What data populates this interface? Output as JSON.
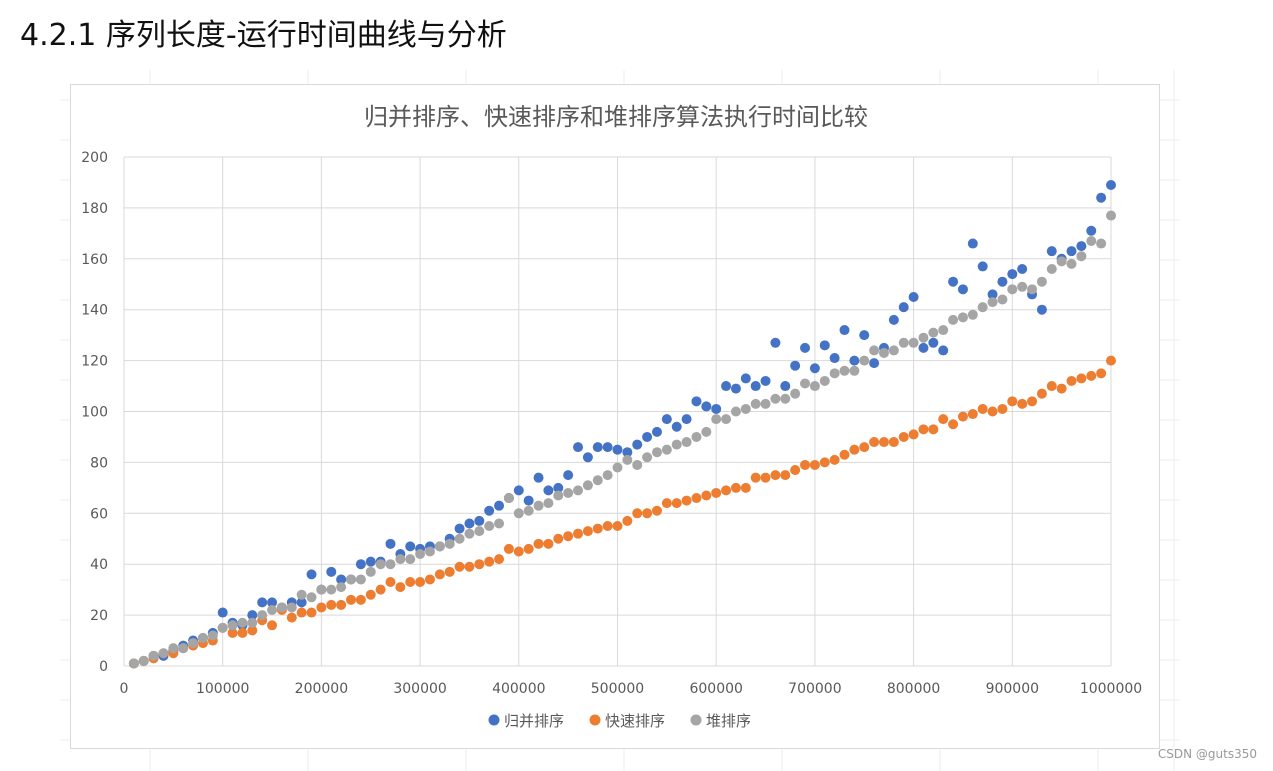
{
  "heading": "4.2.1 序列长度-运行时间曲线与分析",
  "watermark": "CSDN @guts350",
  "colors": {
    "merge": "#4472c4",
    "quick": "#ed7d31",
    "heap": "#a5a5a5",
    "grid": "#d9d9d9",
    "axis_text": "#595959",
    "title_text": "#595959"
  },
  "chart_data": {
    "type": "scatter",
    "title": "归并排序、快速排序和堆排序算法执行时间比较",
    "xlabel": "",
    "ylabel": "",
    "xlim": [
      0,
      1000000
    ],
    "ylim": [
      0,
      200
    ],
    "xticks": [
      0,
      100000,
      200000,
      300000,
      400000,
      500000,
      600000,
      700000,
      800000,
      900000,
      1000000
    ],
    "yticks": [
      0,
      20,
      40,
      60,
      80,
      100,
      120,
      140,
      160,
      180,
      200
    ],
    "grid": true,
    "legend_position": "bottom",
    "x": [
      10000,
      20000,
      30000,
      40000,
      50000,
      60000,
      70000,
      80000,
      90000,
      100000,
      110000,
      120000,
      130000,
      140000,
      150000,
      160000,
      170000,
      180000,
      190000,
      200000,
      210000,
      220000,
      230000,
      240000,
      250000,
      260000,
      270000,
      280000,
      290000,
      300000,
      310000,
      320000,
      330000,
      340000,
      350000,
      360000,
      370000,
      380000,
      390000,
      400000,
      410000,
      420000,
      430000,
      440000,
      450000,
      460000,
      470000,
      480000,
      490000,
      500000,
      510000,
      520000,
      530000,
      540000,
      550000,
      560000,
      570000,
      580000,
      590000,
      600000,
      610000,
      620000,
      630000,
      640000,
      650000,
      660000,
      670000,
      680000,
      690000,
      700000,
      710000,
      720000,
      730000,
      740000,
      750000,
      760000,
      770000,
      780000,
      790000,
      800000,
      810000,
      820000,
      830000,
      840000,
      850000,
      860000,
      870000,
      880000,
      890000,
      900000,
      910000,
      920000,
      930000,
      940000,
      950000,
      960000,
      970000,
      980000,
      990000,
      1000000
    ],
    "series": [
      {
        "name": "归并排序",
        "color": "#4472c4",
        "values": [
          1,
          2,
          4,
          4,
          6,
          8,
          10,
          11,
          13,
          21,
          17,
          16,
          20,
          25,
          25,
          23,
          25,
          25,
          36,
          30,
          37,
          34,
          34,
          40,
          41,
          41,
          48,
          44,
          47,
          46,
          47,
          47,
          50,
          54,
          56,
          57,
          61,
          63,
          66,
          69,
          65,
          74,
          69,
          70,
          75,
          86,
          82,
          86,
          86,
          85,
          84,
          87,
          90,
          92,
          97,
          94,
          97,
          104,
          102,
          101,
          110,
          109,
          113,
          110,
          112,
          127,
          110,
          118,
          125,
          117,
          126,
          121,
          132,
          120,
          130,
          119,
          125,
          136,
          141,
          145,
          125,
          127,
          124,
          151,
          148,
          166,
          157,
          146,
          151,
          154,
          156,
          146,
          140,
          163,
          160,
          163,
          165,
          171,
          184,
          189
        ]
      },
      {
        "name": "快速排序",
        "color": "#ed7d31",
        "values": [
          1,
          2,
          3,
          5,
          5,
          7,
          8,
          9,
          10,
          15,
          13,
          13,
          14,
          18,
          16,
          22,
          19,
          21,
          21,
          23,
          24,
          24,
          26,
          26,
          28,
          30,
          33,
          31,
          33,
          33,
          34,
          36,
          37,
          39,
          39,
          40,
          41,
          42,
          46,
          45,
          46,
          48,
          48,
          50,
          51,
          52,
          53,
          54,
          55,
          55,
          57,
          60,
          60,
          61,
          64,
          64,
          65,
          66,
          67,
          68,
          69,
          70,
          70,
          74,
          74,
          75,
          75,
          77,
          79,
          79,
          80,
          81,
          83,
          85,
          86,
          88,
          88,
          88,
          90,
          91,
          93,
          93,
          97,
          95,
          98,
          99,
          101,
          100,
          101,
          104,
          103,
          104,
          107,
          110,
          109,
          112,
          113,
          114,
          115,
          120
        ]
      },
      {
        "name": "堆排序",
        "color": "#a5a5a5",
        "values": [
          1,
          2,
          4,
          5,
          7,
          7,
          9,
          11,
          12,
          15,
          16,
          17,
          17,
          20,
          22,
          23,
          23,
          28,
          27,
          30,
          30,
          31,
          34,
          34,
          37,
          40,
          40,
          42,
          42,
          44,
          45,
          47,
          48,
          50,
          52,
          53,
          55,
          56,
          66,
          60,
          61,
          63,
          64,
          67,
          68,
          69,
          71,
          73,
          75,
          78,
          81,
          79,
          82,
          84,
          85,
          87,
          88,
          90,
          92,
          97,
          97,
          100,
          101,
          103,
          103,
          105,
          105,
          107,
          111,
          110,
          112,
          115,
          116,
          116,
          120,
          124,
          123,
          124,
          127,
          127,
          129,
          131,
          132,
          136,
          137,
          138,
          141,
          143,
          144,
          148,
          149,
          148,
          151,
          156,
          159,
          158,
          161,
          167,
          166,
          177
        ]
      }
    ]
  }
}
